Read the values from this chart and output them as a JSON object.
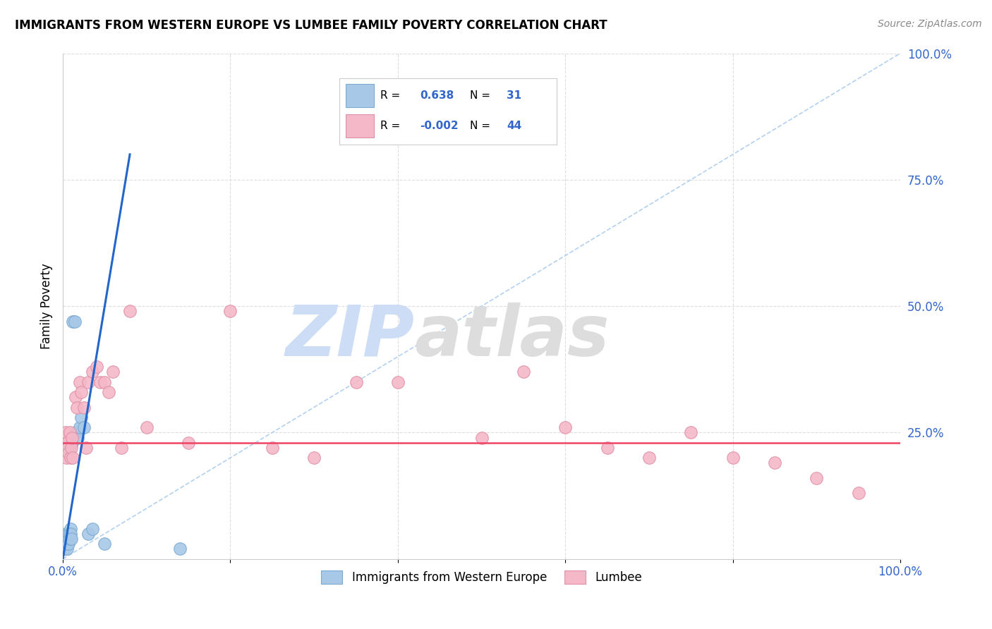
{
  "title": "IMMIGRANTS FROM WESTERN EUROPE VS LUMBEE FAMILY POVERTY CORRELATION CHART",
  "source": "Source: ZipAtlas.com",
  "ylabel": "Family Poverty",
  "xlim": [
    0,
    100
  ],
  "ylim": [
    0,
    100
  ],
  "blue_color": "#A8C8E8",
  "blue_edge": "#7AAAD0",
  "pink_color": "#F4B8C8",
  "pink_edge": "#E090A8",
  "blue_label": "Immigrants from Western Europe",
  "pink_label": "Lumbee",
  "R_blue": "0.638",
  "N_blue": "31",
  "R_pink": "-0.002",
  "N_pink": "44",
  "blue_line_color": "#2266CC",
  "pink_line_color": "#EE4466",
  "diag_color": "#AACCEE",
  "tick_color": "#3366CC",
  "watermark_zip_color": "#CCDDF5",
  "watermark_atlas_color": "#DDDDDD",
  "pink_hline_y": 23,
  "blue_slope": 10.0,
  "blue_intercept": 0,
  "blue_x": [
    0.1,
    0.15,
    0.2,
    0.25,
    0.3,
    0.35,
    0.4,
    0.45,
    0.5,
    0.55,
    0.6,
    0.65,
    0.7,
    0.75,
    0.8,
    0.85,
    0.9,
    0.95,
    1.0,
    1.1,
    1.2,
    1.4,
    1.5,
    1.8,
    2.0,
    2.2,
    2.5,
    3.0,
    3.5,
    5.0,
    14.0
  ],
  "blue_y": [
    2,
    3,
    4,
    2,
    3,
    5,
    3,
    4,
    2,
    3,
    5,
    4,
    3,
    5,
    4,
    22,
    6,
    5,
    4,
    23,
    47,
    47,
    25,
    24,
    26,
    28,
    26,
    5,
    6,
    3,
    2
  ],
  "pink_x": [
    0.1,
    0.2,
    0.3,
    0.4,
    0.5,
    0.6,
    0.7,
    0.8,
    0.9,
    1.0,
    1.1,
    1.2,
    1.5,
    1.7,
    2.0,
    2.2,
    2.5,
    2.8,
    3.0,
    3.5,
    4.0,
    4.5,
    5.0,
    5.5,
    6.0,
    7.0,
    8.0,
    10.0,
    15.0,
    20.0,
    25.0,
    30.0,
    35.0,
    40.0,
    50.0,
    55.0,
    60.0,
    65.0,
    70.0,
    75.0,
    80.0,
    85.0,
    90.0,
    95.0
  ],
  "pink_y": [
    22,
    24,
    25,
    20,
    23,
    22,
    21,
    25,
    20,
    22,
    24,
    20,
    32,
    30,
    35,
    33,
    30,
    22,
    35,
    37,
    38,
    35,
    35,
    33,
    37,
    22,
    49,
    26,
    23,
    49,
    22,
    20,
    35,
    35,
    24,
    37,
    26,
    22,
    20,
    25,
    20,
    19,
    16,
    13
  ]
}
